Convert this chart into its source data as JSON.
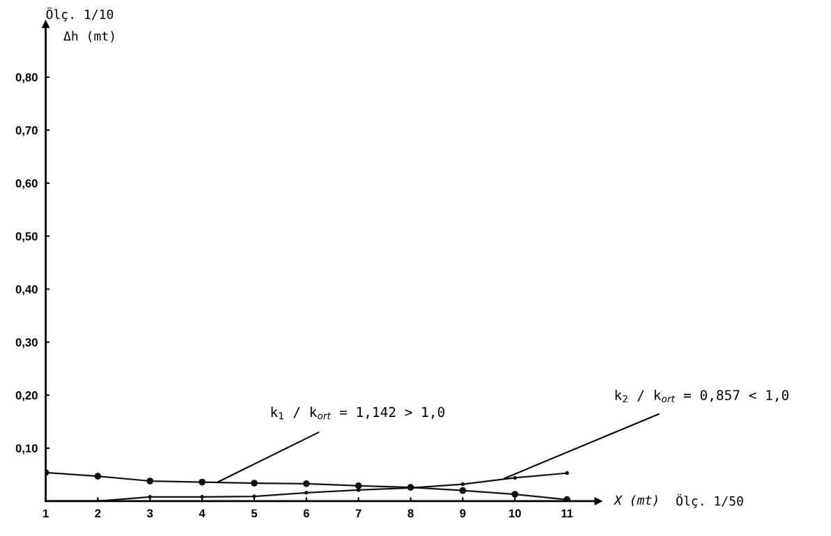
{
  "chart_data": {
    "type": "line",
    "xlabel": "X (mt)",
    "ylabel": "Δh (mt)",
    "x": [
      1,
      2,
      3,
      4,
      5,
      6,
      7,
      8,
      9,
      10,
      11
    ],
    "series": [
      {
        "color": "#111111",
        "values": [
          0.054,
          0.047,
          0.038,
          0.036,
          0.034,
          0.033,
          0.029,
          0.026,
          0.02,
          0.013,
          0.003
        ]
      },
      {
        "color": "#111111",
        "values": [
          0.0,
          0.0,
          0.008,
          0.008,
          0.009,
          0.016,
          0.021,
          0.025,
          0.032,
          0.044,
          0.053
        ]
      }
    ],
    "xlim": [
      1,
      11.6
    ],
    "ylim": [
      0,
      0.9
    ],
    "xticks": [
      1,
      2,
      3,
      4,
      5,
      6,
      7,
      8,
      9,
      10,
      11
    ],
    "yticks": [
      {
        "value": 0.1,
        "label": "0,10"
      },
      {
        "value": 0.2,
        "label": "0,20"
      },
      {
        "value": 0.3,
        "label": "0,30"
      },
      {
        "value": 0.4,
        "label": "0,40"
      },
      {
        "value": 0.5,
        "label": "0,50"
      },
      {
        "value": 0.6,
        "label": "0,60"
      },
      {
        "value": 0.7,
        "label": "0,70"
      },
      {
        "value": 0.8,
        "label": "0,80"
      }
    ],
    "marker": "circle",
    "line_style": "solid",
    "grid": false,
    "legend": false,
    "annotations": [
      "Ölç. 1/10",
      "Ölç. 1/50",
      {
        "text": "k$_{1}$ / k$_{ort}$ = 1,142 > 1,0",
        "x": 4.3,
        "y": 0.036
      },
      {
        "text": "k$_{2}$ / k$_{ort}$ = 0,857 < 1,0",
        "x": 9.8,
        "y": 0.043
      }
    ]
  }
}
